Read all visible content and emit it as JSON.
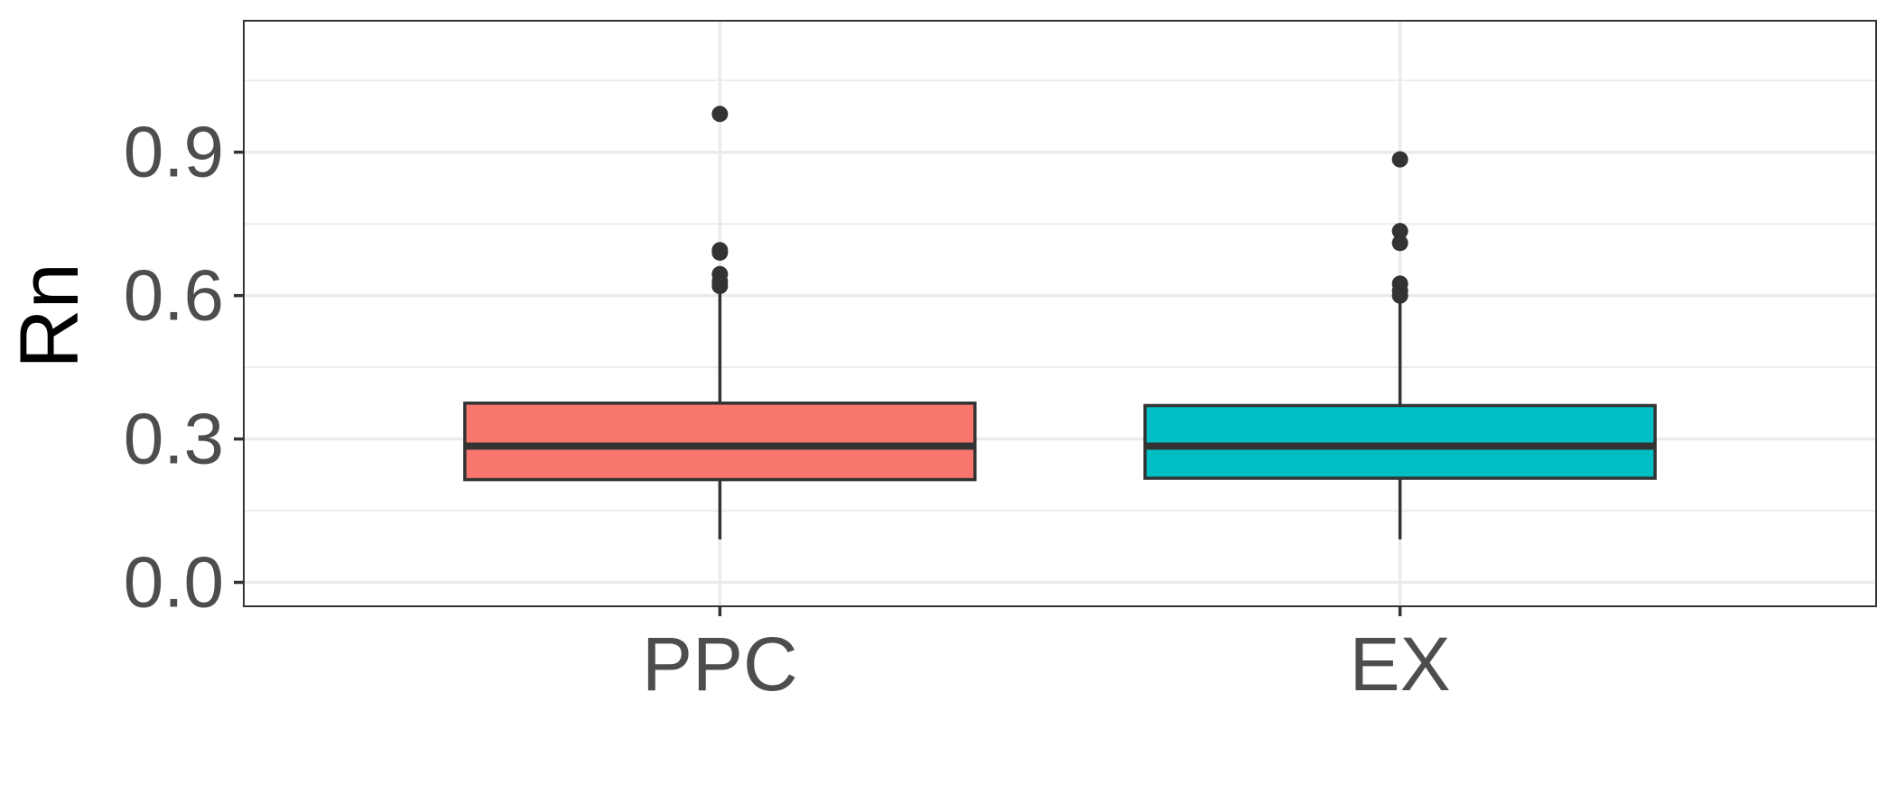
{
  "chart_data": {
    "type": "boxplot",
    "title": "",
    "xlabel": "",
    "ylabel": "Rn",
    "ylim": [
      -0.05,
      1.175
    ],
    "yticks": [
      0.0,
      0.3,
      0.6,
      0.9
    ],
    "ytick_labels": [
      "0.0",
      "0.3",
      "0.6",
      "0.9"
    ],
    "grid": true,
    "categories": [
      "PPC",
      "EX"
    ],
    "boxes": [
      {
        "category": "PPC",
        "color": "#F8766D",
        "whisker_low": 0.09,
        "q1": 0.215,
        "median": 0.285,
        "q3": 0.375,
        "whisker_high": 0.61,
        "outliers": [
          0.62,
          0.63,
          0.645,
          0.69,
          0.695,
          0.98
        ]
      },
      {
        "category": "EX",
        "color": "#00BFC4",
        "whisker_low": 0.09,
        "q1": 0.218,
        "median": 0.285,
        "q3": 0.37,
        "whisker_high": 0.595,
        "outliers": [
          0.6,
          0.61,
          0.625,
          0.71,
          0.735,
          0.885
        ]
      }
    ]
  }
}
